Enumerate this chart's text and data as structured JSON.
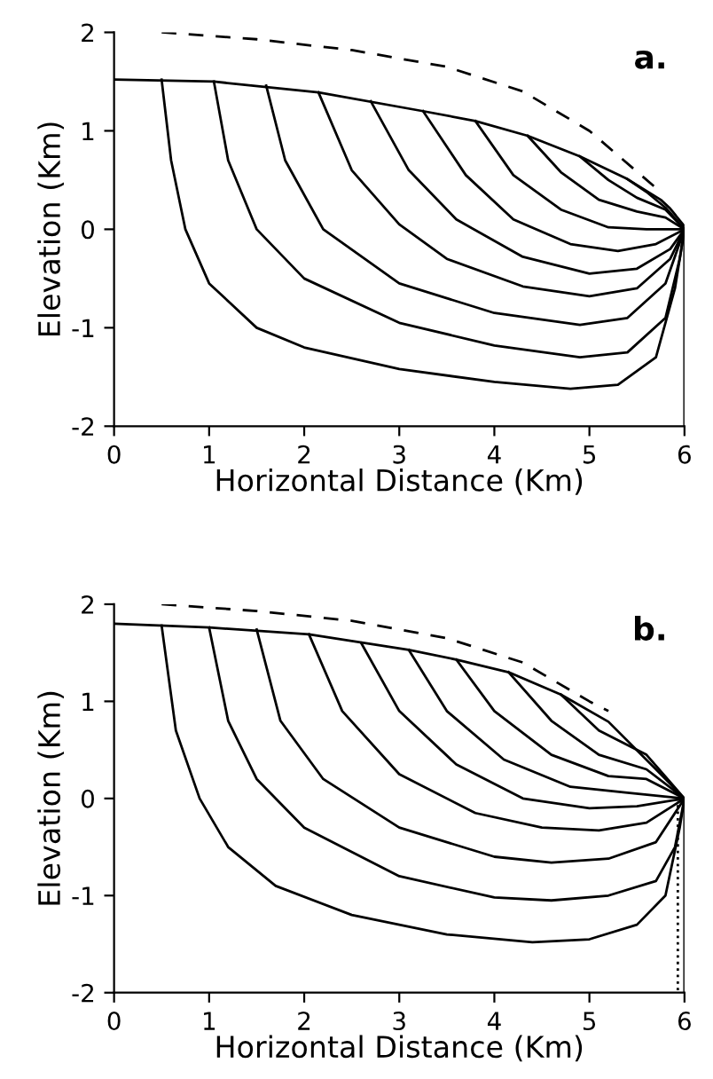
{
  "chart_data": [
    {
      "type": "line",
      "xlabel": "Horizontal Distance (Km)",
      "ylabel": "Elevation (Km)",
      "annotations": [
        "a."
      ],
      "xlim": [
        0,
        6
      ],
      "ylim": [
        -2,
        2
      ],
      "xticks": [
        0,
        1,
        2,
        3,
        4,
        5,
        6
      ],
      "yticks": [
        -2,
        -1,
        0,
        1,
        2
      ],
      "grid": false,
      "marker": "none",
      "series": [
        {
          "color": "#000000",
          "line_style": "dashed",
          "x": [
            0.5,
            1.5,
            2.5,
            3.5,
            4.3,
            5.0,
            5.7
          ],
          "values": [
            2.0,
            1.93,
            1.82,
            1.65,
            1.4,
            1.0,
            0.42
          ]
        },
        {
          "color": "#000000",
          "line_style": "solid",
          "x": [
            0,
            1.05,
            2.15,
            3.25,
            3.8,
            4.35,
            4.9,
            5.4,
            5.75,
            5.85,
            6
          ],
          "values": [
            1.52,
            1.5,
            1.39,
            1.2,
            1.1,
            0.95,
            0.74,
            0.51,
            0.3,
            0.21,
            0.03
          ]
        },
        {
          "color": "#000000",
          "line_style": "solid",
          "x": [
            0.5,
            0.6,
            0.75,
            1.0,
            1.5,
            2,
            3,
            4,
            4.8,
            5.3,
            5.7,
            5.9,
            6
          ],
          "values": [
            1.52,
            0.7,
            0,
            -0.55,
            -1.0,
            -1.2,
            -1.42,
            -1.55,
            -1.62,
            -1.58,
            -1.3,
            -0.6,
            0
          ]
        },
        {
          "color": "#000000",
          "line_style": "solid",
          "x": [
            1.05,
            1.2,
            1.5,
            2,
            3,
            4,
            4.9,
            5.4,
            5.8,
            5.95,
            6
          ],
          "values": [
            1.5,
            0.7,
            0,
            -0.5,
            -0.95,
            -1.18,
            -1.3,
            -1.25,
            -0.9,
            -0.3,
            0
          ]
        },
        {
          "color": "#000000",
          "line_style": "solid",
          "x": [
            1.6,
            1.8,
            2.2,
            3,
            4,
            4.9,
            5.4,
            5.8,
            6
          ],
          "values": [
            1.46,
            0.7,
            0,
            -0.55,
            -0.85,
            -0.97,
            -0.9,
            -0.55,
            0
          ]
        },
        {
          "color": "#000000",
          "line_style": "solid",
          "x": [
            2.15,
            2.5,
            3,
            3.5,
            4.3,
            5,
            5.5,
            5.85,
            6
          ],
          "values": [
            1.39,
            0.6,
            0.05,
            -0.3,
            -0.58,
            -0.68,
            -0.6,
            -0.3,
            0
          ]
        },
        {
          "color": "#000000",
          "line_style": "solid",
          "x": [
            2.7,
            3.1,
            3.6,
            4.3,
            5,
            5.5,
            5.85,
            6
          ],
          "values": [
            1.3,
            0.6,
            0.1,
            -0.28,
            -0.45,
            -0.4,
            -0.2,
            0
          ]
        },
        {
          "color": "#000000",
          "line_style": "solid",
          "x": [
            3.25,
            3.7,
            4.2,
            4.8,
            5.3,
            5.7,
            6
          ],
          "values": [
            1.2,
            0.55,
            0.1,
            -0.15,
            -0.22,
            -0.15,
            0
          ]
        },
        {
          "color": "#000000",
          "line_style": "solid",
          "x": [
            3.8,
            4.2,
            4.7,
            5.2,
            5.6,
            6
          ],
          "values": [
            1.1,
            0.55,
            0.2,
            0.02,
            0.0,
            0
          ]
        },
        {
          "color": "#000000",
          "line_style": "solid",
          "x": [
            4.35,
            4.7,
            5.1,
            5.5,
            5.8,
            6
          ],
          "values": [
            0.95,
            0.58,
            0.3,
            0.18,
            0.12,
            0
          ]
        },
        {
          "color": "#000000",
          "line_style": "solid",
          "x": [
            4.9,
            5.2,
            5.5,
            5.8,
            6
          ],
          "values": [
            0.74,
            0.5,
            0.32,
            0.2,
            0
          ]
        },
        {
          "color": "#000000",
          "line_style": "solid",
          "x": [
            5.4,
            5.6,
            5.8,
            6
          ],
          "values": [
            0.51,
            0.38,
            0.22,
            0
          ]
        },
        {
          "color": "#000000",
          "line_style": "solid",
          "x": [
            6,
            6
          ],
          "values": [
            0,
            -2
          ]
        }
      ]
    },
    {
      "type": "line",
      "xlabel": "Horizontal Distance (Km)",
      "ylabel": "Elevation (Km)",
      "annotations": [
        "b."
      ],
      "xlim": [
        0,
        6
      ],
      "ylim": [
        -2,
        2
      ],
      "xticks": [
        0,
        1,
        2,
        3,
        4,
        5,
        6
      ],
      "yticks": [
        -2,
        -1,
        0,
        1,
        2
      ],
      "grid": false,
      "marker": "none",
      "series": [
        {
          "color": "#000000",
          "line_style": "dashed",
          "x": [
            0.5,
            1.5,
            2.5,
            3.5,
            4.3,
            5.0,
            5.2
          ],
          "values": [
            2.0,
            1.93,
            1.83,
            1.65,
            1.4,
            1.0,
            0.9
          ]
        },
        {
          "color": "#000000",
          "line_style": "solid",
          "x": [
            0,
            1.0,
            2.05,
            3.1,
            3.6,
            4.15,
            4.7,
            5.2,
            5.7,
            5.95
          ],
          "values": [
            1.8,
            1.76,
            1.69,
            1.53,
            1.43,
            1.3,
            1.07,
            0.79,
            0.3,
            0.05
          ]
        },
        {
          "color": "#000000",
          "line_style": "solid",
          "x": [
            0.5,
            0.65,
            0.9,
            1.2,
            1.7,
            2.5,
            3.5,
            4.4,
            5,
            5.5,
            5.8,
            5.95,
            6
          ],
          "values": [
            1.78,
            0.7,
            0,
            -0.5,
            -0.9,
            -1.2,
            -1.4,
            -1.48,
            -1.45,
            -1.3,
            -1.0,
            -0.3,
            0
          ]
        },
        {
          "color": "#000000",
          "line_style": "solid",
          "x": [
            1.0,
            1.2,
            1.5,
            2,
            3,
            4,
            4.6,
            5.2,
            5.7,
            5.9,
            6
          ],
          "values": [
            1.76,
            0.8,
            0.2,
            -0.3,
            -0.8,
            -1.02,
            -1.05,
            -1.0,
            -0.85,
            -0.5,
            0
          ]
        },
        {
          "color": "#000000",
          "line_style": "solid",
          "x": [
            1.5,
            1.75,
            2.2,
            3,
            4,
            4.6,
            5.2,
            5.7,
            6
          ],
          "values": [
            1.74,
            0.8,
            0.2,
            -0.3,
            -0.6,
            -0.66,
            -0.62,
            -0.45,
            0
          ]
        },
        {
          "color": "#000000",
          "line_style": "solid",
          "x": [
            2.05,
            2.4,
            3,
            3.8,
            4.5,
            5.1,
            5.6,
            6
          ],
          "values": [
            1.69,
            0.9,
            0.25,
            -0.15,
            -0.3,
            -0.33,
            -0.25,
            0
          ]
        },
        {
          "color": "#000000",
          "line_style": "solid",
          "x": [
            2.6,
            3,
            3.6,
            4.3,
            5,
            5.5,
            6
          ],
          "values": [
            1.6,
            0.9,
            0.35,
            0.0,
            -0.1,
            -0.08,
            0
          ]
        },
        {
          "color": "#000000",
          "line_style": "solid",
          "x": [
            3.1,
            3.5,
            4.1,
            4.8,
            5.4,
            6
          ],
          "values": [
            1.53,
            0.9,
            0.4,
            0.12,
            0.06,
            0
          ]
        },
        {
          "color": "#000000",
          "line_style": "solid",
          "x": [
            3.6,
            4.0,
            4.6,
            5.2,
            5.6,
            6
          ],
          "values": [
            1.43,
            0.9,
            0.45,
            0.23,
            0.2,
            0
          ]
        },
        {
          "color": "#000000",
          "line_style": "solid",
          "x": [
            4.15,
            4.6,
            5.1,
            5.6,
            6
          ],
          "values": [
            1.3,
            0.8,
            0.45,
            0.3,
            0
          ]
        },
        {
          "color": "#000000",
          "line_style": "solid",
          "x": [
            4.7,
            5.1,
            5.6,
            6
          ],
          "values": [
            1.07,
            0.7,
            0.45,
            0
          ]
        },
        {
          "color": "#000000",
          "line_style": "dotted",
          "x": [
            5.93,
            5.93
          ],
          "values": [
            0,
            -2
          ]
        },
        {
          "color": "#000000",
          "line_style": "solid",
          "x": [
            6,
            6
          ],
          "values": [
            0,
            -2
          ]
        }
      ]
    }
  ]
}
